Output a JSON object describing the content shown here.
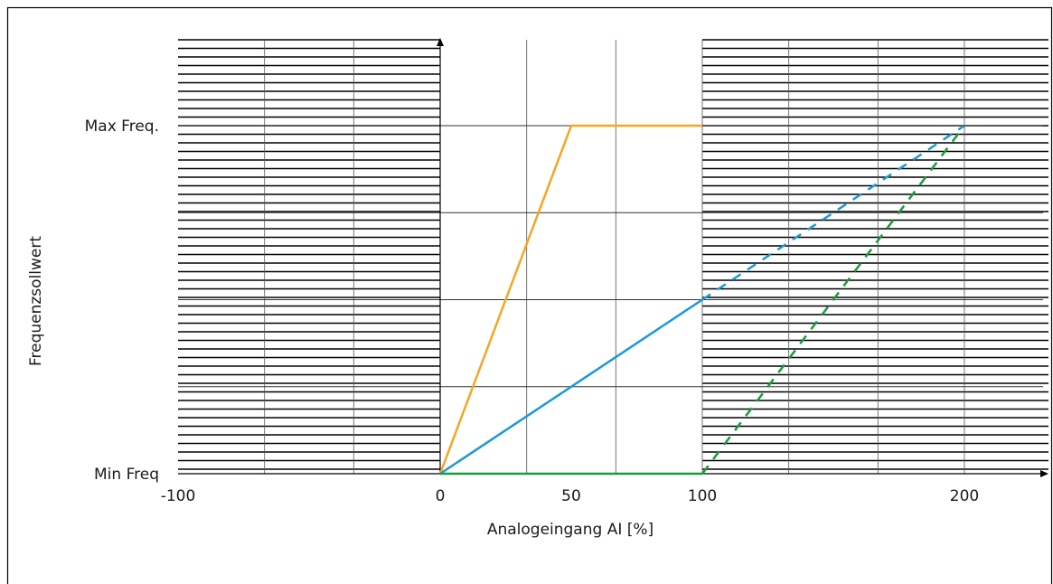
{
  "chart_data": {
    "type": "line",
    "title": "",
    "xlabel": "Analogeingang AI [%]",
    "ylabel": "Frequenzsollwert",
    "xlim": [
      -100,
      230
    ],
    "ylim": [
      0,
      1.1
    ],
    "x_ticks": [
      {
        "value": -100,
        "label": "-100"
      },
      {
        "value": 0,
        "label": "0"
      },
      {
        "value": 50,
        "label": "50"
      },
      {
        "value": 100,
        "label": "100"
      },
      {
        "value": 200,
        "label": "200"
      }
    ],
    "y_ticks": [
      {
        "value": 0,
        "label": "Min Freq"
      },
      {
        "value": 1,
        "label": "Max Freq."
      }
    ],
    "series": [
      {
        "color": "#f5a623",
        "style": "solid",
        "points": [
          [
            0,
            0
          ],
          [
            50,
            1
          ],
          [
            100,
            1
          ]
        ]
      },
      {
        "color": "#1a9ad6",
        "style": "solid",
        "points": [
          [
            0,
            0
          ],
          [
            100,
            0.5
          ]
        ]
      },
      {
        "color": "#1a9ad6",
        "style": "dashed",
        "points": [
          [
            100,
            0.5
          ],
          [
            200,
            1
          ]
        ]
      },
      {
        "color": "#1c9b3b",
        "style": "solid",
        "points": [
          [
            0,
            0
          ],
          [
            100,
            0
          ]
        ]
      },
      {
        "color": "#1c9b3b",
        "style": "dashed",
        "points": [
          [
            100,
            0
          ],
          [
            200,
            1
          ]
        ]
      }
    ]
  }
}
